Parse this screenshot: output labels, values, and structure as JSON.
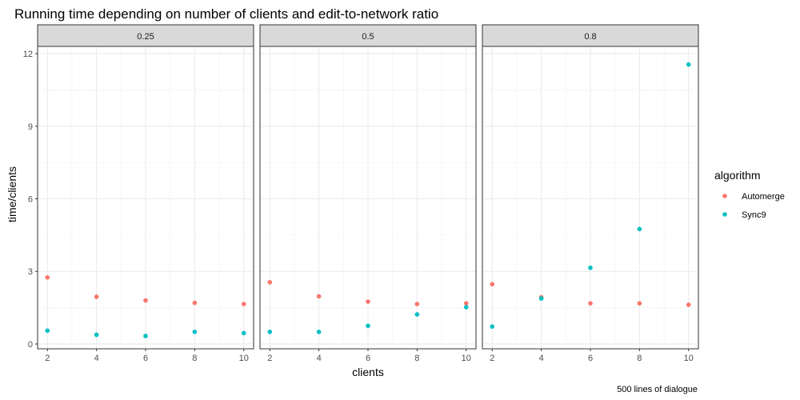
{
  "chart_data": {
    "type": "scatter",
    "title": "Running time depending on number of clients and edit-to-network ratio",
    "xlabel": "clients",
    "ylabel": "time/clients",
    "caption": "500 lines of dialogue",
    "xlim": [
      1.6,
      10.4
    ],
    "ylim": [
      -0.2,
      12.3
    ],
    "xticks": [
      2,
      4,
      6,
      8,
      10
    ],
    "yticks": [
      0,
      3,
      6,
      9,
      12
    ],
    "grid": true,
    "legend_title": "algorithm",
    "legend_position": "right",
    "facets": [
      {
        "label": "0.25",
        "series": [
          {
            "name": "Automerge",
            "color": "#F8766D",
            "x": [
              2,
              4,
              6,
              8,
              10
            ],
            "y": [
              2.75,
              1.95,
              1.8,
              1.7,
              1.65
            ]
          },
          {
            "name": "Sync9",
            "color": "#00BFC4",
            "x": [
              2,
              4,
              6,
              8,
              10
            ],
            "y": [
              0.55,
              0.38,
              0.33,
              0.5,
              0.45
            ]
          }
        ]
      },
      {
        "label": "0.5",
        "series": [
          {
            "name": "Automerge",
            "color": "#F8766D",
            "x": [
              2,
              4,
              6,
              8,
              10
            ],
            "y": [
              2.55,
              1.97,
              1.75,
              1.65,
              1.68
            ]
          },
          {
            "name": "Sync9",
            "color": "#00BFC4",
            "x": [
              2,
              4,
              6,
              8,
              10
            ],
            "y": [
              0.5,
              0.5,
              0.75,
              1.22,
              1.52
            ]
          }
        ]
      },
      {
        "label": "0.8",
        "series": [
          {
            "name": "Automerge",
            "color": "#F8766D",
            "x": [
              2,
              4,
              6,
              8,
              10
            ],
            "y": [
              2.47,
              1.93,
              1.68,
              1.68,
              1.62
            ]
          },
          {
            "name": "Sync9",
            "color": "#00BFC4",
            "x": [
              2,
              4,
              6,
              8,
              10
            ],
            "y": [
              0.72,
              1.88,
              3.15,
              4.75,
              11.55
            ]
          }
        ]
      }
    ]
  }
}
